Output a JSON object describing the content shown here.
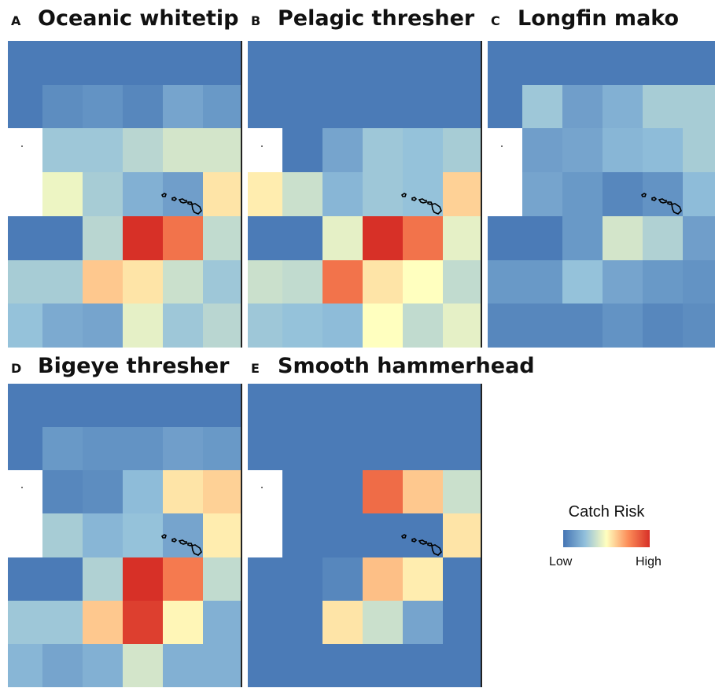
{
  "panels": [
    {
      "letter": "A",
      "title": "Oceanic whitetip",
      "grid": [
        [
          0.02,
          0.02,
          0.02,
          0.02,
          0.02,
          0.02
        ],
        [
          0.02,
          0.08,
          0.1,
          0.06,
          0.16,
          0.12
        ],
        [
          null,
          0.28,
          0.28,
          0.34,
          0.4,
          0.4
        ],
        [
          null,
          0.46,
          0.3,
          0.2,
          0.14,
          0.56
        ],
        [
          0.02,
          0.02,
          0.34,
          1.0,
          0.82,
          0.36
        ],
        [
          0.3,
          0.3,
          0.62,
          0.56,
          0.38,
          0.28
        ],
        [
          0.26,
          0.18,
          0.16,
          0.44,
          0.28,
          0.34
        ]
      ]
    },
    {
      "letter": "B",
      "title": "Pelagic thresher",
      "grid": [
        [
          0.02,
          0.02,
          0.02,
          0.02,
          0.02,
          0.02
        ],
        [
          0.02,
          0.02,
          0.02,
          0.02,
          0.02,
          0.02
        ],
        [
          null,
          0.02,
          0.16,
          0.28,
          0.26,
          0.3
        ],
        [
          0.54,
          0.38,
          0.22,
          0.28,
          0.26,
          0.6
        ],
        [
          0.02,
          0.02,
          0.44,
          1.0,
          0.82,
          0.44
        ],
        [
          0.38,
          0.36,
          0.82,
          0.56,
          0.5,
          0.36
        ],
        [
          0.28,
          0.26,
          0.24,
          0.5,
          0.36,
          0.44
        ]
      ]
    },
    {
      "letter": "C",
      "title": "Longfin mako",
      "grid": [
        [
          0.02,
          0.02,
          0.02,
          0.02,
          0.02,
          0.02
        ],
        [
          0.02,
          0.28,
          0.14,
          0.2,
          0.3,
          0.3
        ],
        [
          null,
          0.14,
          0.16,
          0.22,
          0.24,
          0.3
        ],
        [
          null,
          0.16,
          0.12,
          0.06,
          0.1,
          0.24
        ],
        [
          0.02,
          0.02,
          0.12,
          0.4,
          0.32,
          0.14
        ],
        [
          0.12,
          0.12,
          0.26,
          0.16,
          0.12,
          0.1
        ],
        [
          0.06,
          0.06,
          0.06,
          0.1,
          0.06,
          0.08
        ]
      ]
    },
    {
      "letter": "D",
      "title": "Bigeye thresher",
      "grid": [
        [
          0.02,
          0.02,
          0.02,
          0.02,
          0.02,
          0.02
        ],
        [
          0.02,
          0.12,
          0.1,
          0.1,
          0.14,
          0.12
        ],
        [
          null,
          0.06,
          0.08,
          0.24,
          0.56,
          0.6
        ],
        [
          null,
          0.3,
          0.22,
          0.26,
          0.16,
          0.54
        ],
        [
          0.02,
          0.02,
          0.32,
          1.0,
          0.8,
          0.36
        ],
        [
          0.28,
          0.28,
          0.62,
          0.96,
          0.52,
          0.2
        ],
        [
          0.22,
          0.16,
          0.2,
          0.4,
          0.2,
          0.2
        ]
      ]
    },
    {
      "letter": "E",
      "title": "Smooth hammerhead",
      "grid": [
        [
          0.02,
          0.02,
          0.02,
          0.02,
          0.02,
          0.02
        ],
        [
          0.02,
          0.02,
          0.02,
          0.02,
          0.02,
          0.02
        ],
        [
          null,
          0.02,
          0.02,
          0.84,
          0.62,
          0.38
        ],
        [
          null,
          0.02,
          0.02,
          0.02,
          0.02,
          0.56
        ],
        [
          0.02,
          0.02,
          0.06,
          0.64,
          0.54,
          0.02
        ],
        [
          0.02,
          0.02,
          0.56,
          0.38,
          0.16,
          0.02
        ],
        [
          0.02,
          0.02,
          0.02,
          0.02,
          0.02,
          0.02
        ]
      ]
    }
  ],
  "legend": {
    "title": "Catch Risk",
    "low": "Low",
    "high": "High"
  },
  "chart_data": [
    {
      "type": "heatmap",
      "title": "Oceanic whitetip",
      "rows": 7,
      "cols": 6
    },
    {
      "type": "heatmap",
      "title": "Pelagic thresher",
      "rows": 7,
      "cols": 6
    },
    {
      "type": "heatmap",
      "title": "Longfin mako",
      "rows": 7,
      "cols": 6
    },
    {
      "type": "heatmap",
      "title": "Bigeye thresher",
      "rows": 7,
      "cols": 6
    },
    {
      "type": "heatmap",
      "title": "Smooth hammerhead",
      "rows": 7,
      "cols": 6
    }
  ],
  "colors": {
    "low": "#4575b4",
    "mid": "#ffffbf",
    "high": "#d73027"
  }
}
